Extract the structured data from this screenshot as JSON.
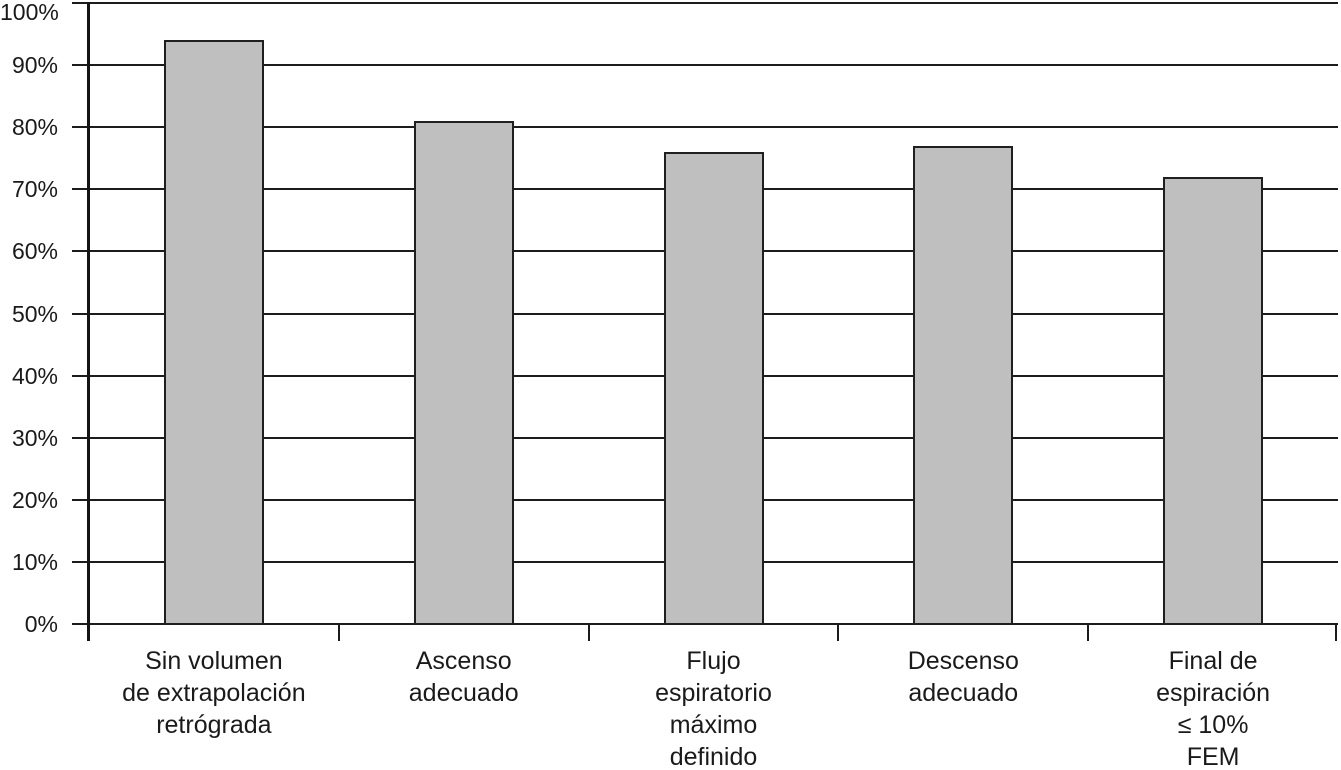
{
  "chart_data": {
    "type": "bar",
    "categories": [
      "Sin volumen\nde extrapolación\nretrógrada",
      "Ascenso\nadecuado",
      "Flujo\nespiratorio\nmáximo\ndefinido",
      "Descenso\nadecuado",
      "Final de\nespiración\n≤ 10%\nFEM"
    ],
    "values": [
      94,
      81,
      76,
      77,
      72
    ],
    "title": "",
    "xlabel": "",
    "ylabel": "",
    "ylim": [
      0,
      100
    ],
    "ytick_step": 10,
    "ytick_labels": [
      "0%",
      "10%",
      "20%",
      "30%",
      "40%",
      "50%",
      "60%",
      "70%",
      "80%",
      "90%",
      "100%"
    ],
    "grid": true,
    "legend": false,
    "colors": {
      "bar_fill": "#bfbfbf",
      "bar_border": "#1f1f1f",
      "axis": "#141414",
      "gridline": "#1c1c1c",
      "text": "#1a1a1a"
    }
  }
}
